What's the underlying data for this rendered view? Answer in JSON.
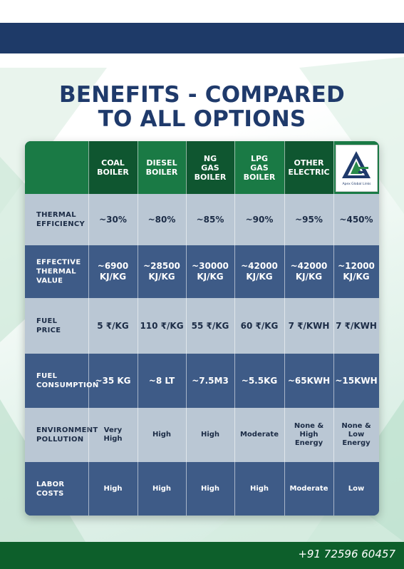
{
  "title_line1": "BENEFITS - COMPARED",
  "title_line2": "TO ALL OPTIONS",
  "columns": [
    "COAL\nBOILER",
    "DIESEL\nBOILER",
    "NG\nGAS\nBOILER",
    "LPG\nGAS\nBOILER",
    "OTHER\nELECTRIC"
  ],
  "logo_text": "Apex Global Links",
  "rows": [
    {
      "label": "THERMAL\nEFFICIENCY",
      "values": [
        "~30%",
        "~80%",
        "~85%",
        "~90%",
        "~95%",
        "~450%"
      ]
    },
    {
      "label": "EFFECTIVE\nTHERMAL\nVALUE",
      "values": [
        "~6900\nKJ/KG",
        "~28500\nKJ/KG",
        "~30000\nKJ/KG",
        "~42000\nKJ/KG",
        "~42000\nKJ/KG",
        "~12000\nKJ/KG"
      ]
    },
    {
      "label": "FUEL\nPRICE",
      "values": [
        "5 ₹/KG",
        "110 ₹/KG",
        "55 ₹/KG",
        "60 ₹/KG",
        "7 ₹/KWH",
        "7 ₹/KWH"
      ]
    },
    {
      "label": "FUEL\nCONSUMPTION",
      "values": [
        "~35 KG",
        "~8 LT",
        "~7.5M3",
        "~5.5KG",
        "~65KWH",
        "~15KWH"
      ]
    },
    {
      "label": "ENVIRONMENT\nPOLLUTION",
      "values": [
        "Very\nHigh",
        "High",
        "High",
        "Moderate",
        "None &\nHigh\nEnergy",
        "None &\nLow\nEnergy"
      ]
    },
    {
      "label": "LABOR\nCOSTS",
      "values": [
        "High",
        "High",
        "High",
        "High",
        "Moderate",
        "Low"
      ]
    }
  ],
  "phone": "+91 72596 60457",
  "colors": {
    "navy": "#1e3a68",
    "green": "#1a7a45",
    "dark_green": "#0d5f2b",
    "row_light": "#bac7d4",
    "row_dark": "#3e5b87"
  }
}
